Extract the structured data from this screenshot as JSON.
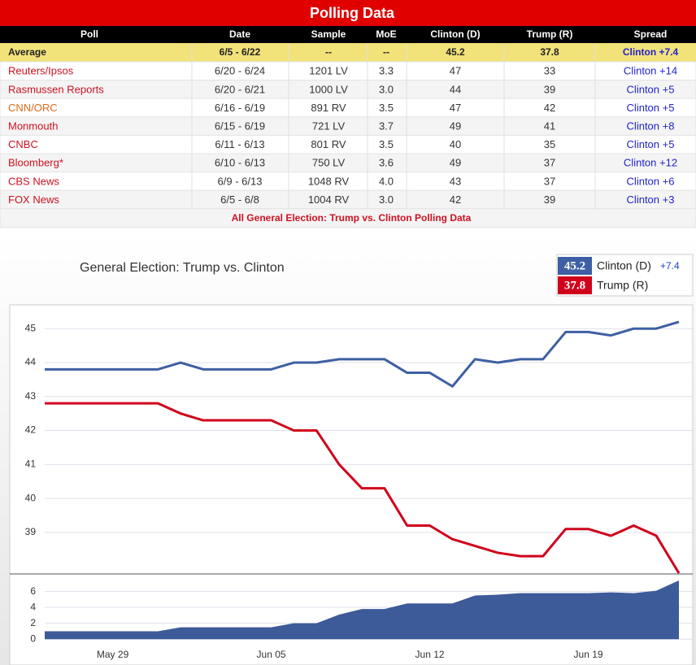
{
  "table": {
    "title": "Polling Data",
    "columns": [
      "Poll",
      "Date",
      "Sample",
      "MoE",
      "Clinton (D)",
      "Trump (R)",
      "Spread"
    ],
    "average": [
      "Average",
      "6/5 - 6/22",
      "--",
      "--",
      "45.2",
      "37.8",
      "Clinton +7.4"
    ],
    "rows": [
      [
        "Reuters/Ipsos",
        "6/20 - 6/24",
        "1201 LV",
        "3.3",
        "47",
        "33",
        "Clinton +14"
      ],
      [
        "Rasmussen Reports",
        "6/20 - 6/21",
        "1000 LV",
        "3.0",
        "44",
        "39",
        "Clinton +5"
      ],
      [
        "CNN/ORC",
        "6/16 - 6/19",
        "891 RV",
        "3.5",
        "47",
        "42",
        "Clinton +5"
      ],
      [
        "Monmouth",
        "6/15 - 6/19",
        "721 LV",
        "3.7",
        "49",
        "41",
        "Clinton +8"
      ],
      [
        "CNBC",
        "6/11 - 6/13",
        "801 RV",
        "3.5",
        "40",
        "35",
        "Clinton +5"
      ],
      [
        "Bloomberg*",
        "6/10 - 6/13",
        "750 LV",
        "3.6",
        "49",
        "37",
        "Clinton +12"
      ],
      [
        "CBS News",
        "6/9 - 6/13",
        "1048 RV",
        "4.0",
        "43",
        "37",
        "Clinton +6"
      ],
      [
        "FOX News",
        "6/5 - 6/8",
        "1004 RV",
        "3.0",
        "42",
        "39",
        "Clinton +3"
      ]
    ],
    "row_colors": [
      "#cc1122",
      "#cc1122",
      "#e06a1a",
      "#cc1122",
      "#cc1122",
      "#cc1122",
      "#cc1122",
      "#cc1122"
    ],
    "footer": "All General Election: Trump vs. Clinton Polling Data"
  },
  "chart_data": [
    {
      "type": "line",
      "title": "General Election: Trump vs. Clinton",
      "ylim": [
        37.8,
        45.7
      ],
      "yticks": [
        39,
        40,
        41,
        42,
        43,
        44,
        45
      ],
      "grid": true,
      "spread": {
        "value": 7.4,
        "label": "+7.4"
      },
      "series": [
        {
          "name": "Clinton (D)",
          "color": "#3e5fa3",
          "latest": 45.2,
          "values": [
            43.8,
            43.8,
            43.8,
            43.8,
            43.8,
            43.8,
            44.0,
            43.8,
            43.8,
            43.8,
            43.8,
            44.0,
            44.0,
            44.1,
            44.1,
            44.1,
            43.7,
            43.7,
            43.3,
            44.1,
            44.0,
            44.1,
            44.1,
            44.9,
            44.9,
            44.8,
            45.0,
            45.0,
            45.2
          ]
        },
        {
          "name": "Trump (R)",
          "color": "#d0021b",
          "latest": 37.8,
          "values": [
            42.8,
            42.8,
            42.8,
            42.8,
            42.8,
            42.8,
            42.5,
            42.3,
            42.3,
            42.3,
            42.3,
            42.0,
            42.0,
            41.0,
            40.3,
            40.3,
            39.2,
            39.2,
            38.8,
            38.6,
            38.4,
            38.3,
            38.3,
            39.1,
            39.1,
            38.9,
            39.2,
            38.9,
            37.8
          ]
        }
      ]
    },
    {
      "type": "area",
      "color": "#3d5a99",
      "ylim": [
        -0.9,
        7.6
      ],
      "yticks": [
        0,
        2,
        4,
        6
      ],
      "grid": true,
      "categories": [
        null,
        null,
        null,
        "May 29",
        null,
        null,
        null,
        null,
        null,
        null,
        "Jun 05",
        null,
        null,
        null,
        null,
        null,
        null,
        "Jun 12",
        null,
        null,
        null,
        null,
        null,
        null,
        "Jun 19",
        null,
        null,
        null,
        null
      ],
      "values": [
        1.0,
        1.0,
        1.0,
        1.0,
        1.0,
        1.0,
        1.5,
        1.5,
        1.5,
        1.5,
        1.5,
        2.0,
        2.0,
        3.1,
        3.8,
        3.8,
        4.5,
        4.5,
        4.5,
        5.5,
        5.6,
        5.8,
        5.8,
        5.8,
        5.8,
        5.9,
        5.8,
        6.1,
        7.4
      ]
    }
  ]
}
